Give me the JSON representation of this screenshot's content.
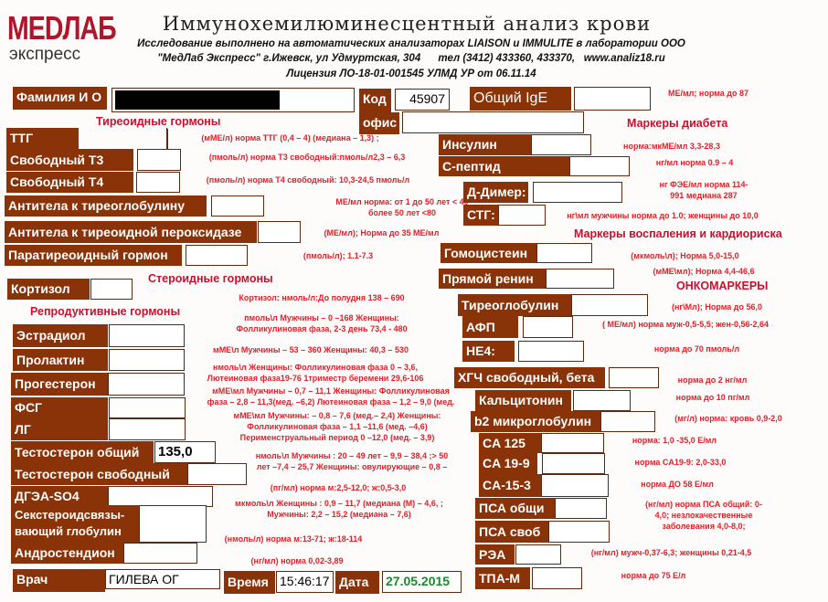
{
  "header": {
    "logo_top": "MEDЛAБ",
    "logo_bottom": "экспресс",
    "title": "Иммунохемилюминесцентный анализ крови",
    "lines": [
      "Исследование выполнено на автоматических анализаторах LIAISON и IMMULITE в лаборатории ООО",
      "\"МедЛаб Экспресс\" г.Ижевск, ул Удмуртская, 304      тел (3412) 433360, 433370,   www.analiz18.ru",
      "Лицензия ЛО-18-01-001545 УЛМД УР от 06.11.14"
    ]
  },
  "patient": {
    "name_label": "Фамилия И О",
    "name_value": "",
    "code_label": "Код",
    "code_value": "45907",
    "office_label": "офис",
    "office_value": "",
    "ige_label": "Общий IgE",
    "ige_value": "",
    "ige_norm": "МЕ/мл; норма до 87"
  },
  "sections": {
    "thyroid": "Тиреоидные гормоны",
    "steroid": "Стероидные гормоны",
    "repro": "Репродуктивные гормоны",
    "diabetes": "Маркеры диабета",
    "inflammation": "Маркеры воспаления и кардиориска",
    "onco": "ОНКОМАРКЕРЫ"
  },
  "fields": [
    {
      "key": "ttg",
      "label": "ТТГ",
      "value": "",
      "norm": "(мМЕ/л) норма ТТГ (0,4 – 4) (медиана – 1,3) ;"
    },
    {
      "key": "ft3",
      "label": "Свободный Т3",
      "value": "",
      "norm": "(пмоль/л) норма Т3 свободный:пмоль/л2,3 – 6,3"
    },
    {
      "key": "ft4",
      "label": "Свободный Т4",
      "value": "",
      "norm": "(пмоль/л) норма Т4 свободный: 10,3-24,5 пмоль/л"
    },
    {
      "key": "atg",
      "label": "Антитела к    тиреоглобулину",
      "value": "",
      "norm": "МЕ/мл норма: от 1 до 50 лет < 40\nболее 50 лет <80"
    },
    {
      "key": "atpo",
      "label": "Антитела к тиреоидной пероксидазе",
      "value": "",
      "norm": "(МЕ/мл); Норма до 35 МЕ/мл"
    },
    {
      "key": "pth",
      "label": "Паратиреоидный гормон",
      "value": "",
      "norm": "(пмоль/л); 1.1-7.3"
    },
    {
      "key": "cortisol",
      "label": "Кортизол",
      "value": "",
      "norm": "Кортизол: нмоль/л:До полудня 138 – 690"
    },
    {
      "key": "estradiol",
      "label": "Эстрадиол",
      "value": "",
      "norm": "пмоль\\л Мужчины – 0 –168  Женщины:\nФолликулиновая фаза, 2-3 день 73,4 - 480"
    },
    {
      "key": "prolactin",
      "label": "Пролактин",
      "value": "",
      "norm": "мМЕ\\л Мужчины – 53 – 360  Женщины: 40,3 – 530"
    },
    {
      "key": "progesterone",
      "label": "Прогестерон",
      "value": "",
      "norm": "нмоль\\л Женщины: Фолликулиновая фаза 0 – 3,6,\nЛютеиновая фаза19-76 1триместр беремени  29,6-106"
    },
    {
      "key": "fsh",
      "label": "ФСГ",
      "value": "",
      "norm": "мМЕ\\мл Мужчины – 0,7 – 11,1 Женщины: Фолликулиновая\nфаза – 2,8 – 11,3(мед. –6,2) Лютеиновая фаза – 1,2 – 9,0 (мед."
    },
    {
      "key": "lh",
      "label": "ЛГ",
      "value": "",
      "norm": "мМЕ\\мл Мужчины: – 0,8 – 7,6 (мед.– 2,4) Женщины:\nФолликулиновая фаза – 1,1 –11,6 (мед. –4,6)\nПерименструальный период  0 –12,0 (мед. – 3,9)"
    },
    {
      "key": "testo_total",
      "label": "Тестостерон общий",
      "value": "135,0",
      "norm": "нмоль\\л Мужчины : 20 – 49 лет – 9,9 – 38,4 ;> 50\nлет –7,4 – 25,7  Женщины: овулирующие – 0,8 –"
    },
    {
      "key": "testo_free",
      "label": "Тестостерон свободный",
      "value": "",
      "norm": "(пг/мл) норма м:2,5-12,0; ж:0,5-3,0"
    },
    {
      "key": "dhea",
      "label": "ДГЭА-SO4",
      "value": "",
      "norm": "мкмоль\\л Женщины : 0,9 – 11,7 (медиана (М) – 4,6, ;\nМужчины: 2,2 – 15,2 (медиана – 7,6)"
    },
    {
      "key": "shbg",
      "label": "Секстероидсвязы-\nвающий глобулин",
      "value": "",
      "norm": "(нмоль/л) норма м:13-71; ж:18-114"
    },
    {
      "key": "andro",
      "label": "Андростендион",
      "value": "",
      "norm": "(нг/мл) норма 0,02-3,89"
    },
    {
      "key": "insulin",
      "label": "Инсулин",
      "value": "",
      "norm": "норма:мкМЕ/мл 3,3-28,3"
    },
    {
      "key": "cpep",
      "label": "С-пептид",
      "value": "",
      "norm": "нг/мл норма 0.9 – 4"
    },
    {
      "key": "ddimer",
      "label": "Д-Димер:",
      "value": "",
      "norm": "нг ФЭЕ/мл норма 114-\n991 медиана 287"
    },
    {
      "key": "stg",
      "label": "СТГ:",
      "value": "",
      "norm": "нг\\мл мужчины норма до 1.0; женщины до 10,0"
    },
    {
      "key": "homocys",
      "label": "Гомоцистеин",
      "value": "",
      "norm": "(мкмоль\\л); Норма 5,0-15,0"
    },
    {
      "key": "renin",
      "label": "Прямой ренин",
      "value": "",
      "norm": "(мМЕ\\мл); Норма 4,4-46,6"
    },
    {
      "key": "tg",
      "label": "Тиреоглобулин",
      "value": "",
      "norm": "(нг\\Мл); Норма до 56,0"
    },
    {
      "key": "afp",
      "label": "АФП",
      "value": "",
      "norm": "( МЕ/мл) норма муж-0,5-5,5; жен-0,56-2,64"
    },
    {
      "key": "he4",
      "label": "НЕ4:",
      "value": "",
      "norm": "норма до 70 пмоль/л"
    },
    {
      "key": "hcg",
      "label": "ХГЧ свободный, бета",
      "value": "",
      "norm": "норма до 2 нг/мл"
    },
    {
      "key": "calc",
      "label": "Кальцитонин",
      "value": "",
      "norm": "норма до 10 пг/мл"
    },
    {
      "key": "b2m",
      "label": "b2 микроглобулин",
      "value": "",
      "norm": "(мг/л) норма: кровь 0,9-2,0"
    },
    {
      "key": "ca125",
      "label": "CA 125",
      "value": "",
      "norm": "норма: 1,0 -35,0  Е/мл"
    },
    {
      "key": "ca199",
      "label": "CA 19-9",
      "value": "",
      "norm": "норма CA19-9: 2,0-33,0"
    },
    {
      "key": "ca153",
      "label": "CA-15-3",
      "value": "",
      "norm": "норма ДО 58 Е/мл"
    },
    {
      "key": "psa_total",
      "label": "ПСА общи",
      "value": "",
      "norm": "(нг/мл) норма ПСА общий: 0-\n4,0; незлокачественные\nзаболевания 4,0-8,0;"
    },
    {
      "key": "psa_free",
      "label": "ПСА своб",
      "value": "",
      "norm": ""
    },
    {
      "key": "rea",
      "label": "РЭА",
      "value": "",
      "norm": "(нг/мл) мужч-0,37-6,3; женщины 0,21-4,5"
    },
    {
      "key": "tpam",
      "label": "ТПА-М",
      "value": "",
      "norm": "норма до 75 Е/л"
    }
  ],
  "footer": {
    "doctor_label": "Врач",
    "doctor_value": "ГИЛЕВА ОГ",
    "time_label": "Время",
    "time_value": "15:46:17",
    "date_label": "Дата",
    "date_value": "27.05.2015"
  },
  "colors": {
    "label_bg": "#8a3208",
    "norm_text": "#e0202a",
    "section_text": "#c8102e",
    "date_text": "#1a8a2a"
  }
}
